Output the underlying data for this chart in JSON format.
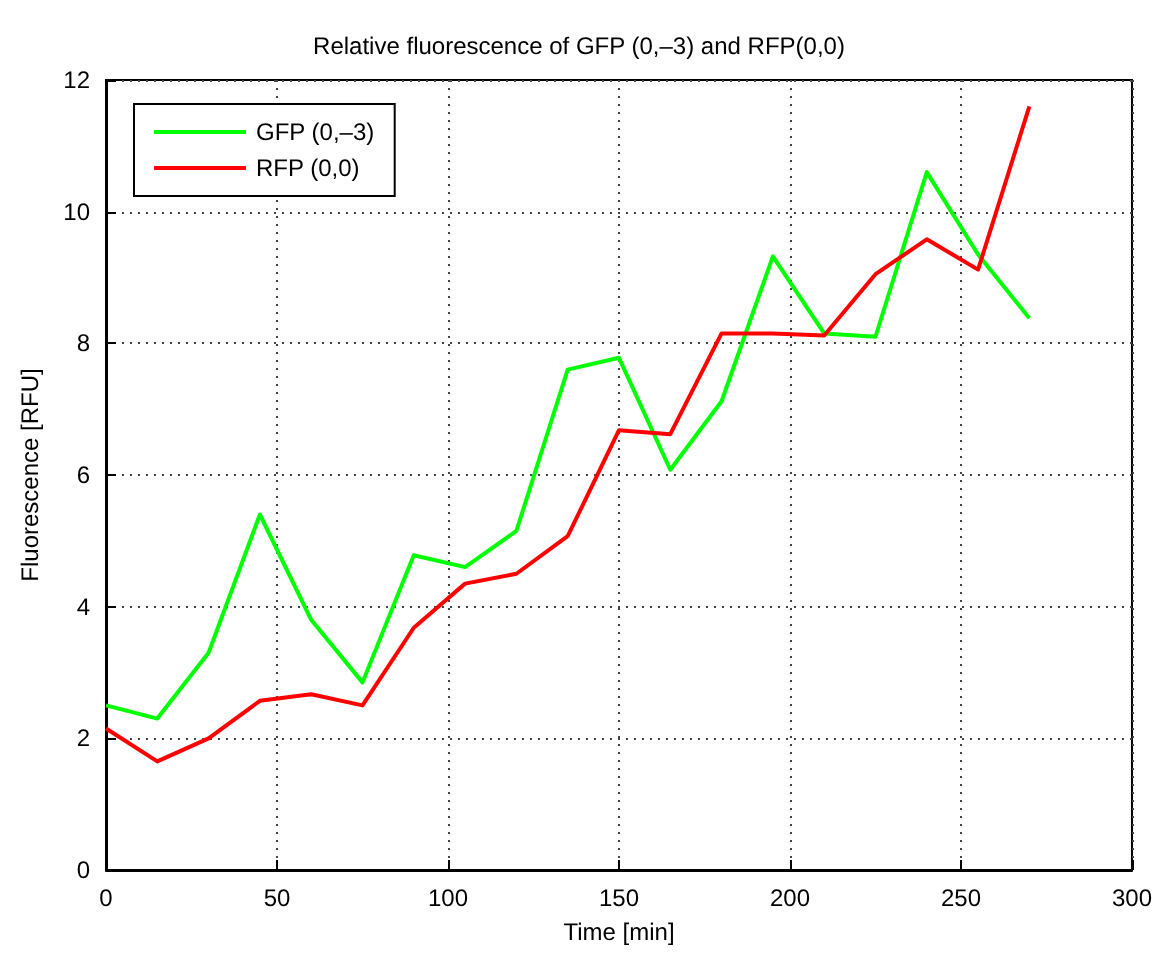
{
  "chart_data": {
    "type": "line",
    "title": "Relative fluorescence of GFP (0,–3) and RFP(0,0)",
    "xlabel": "Time [min]",
    "ylabel": "Fluorescence [RFU]",
    "x": [
      0,
      15,
      30,
      45,
      60,
      75,
      90,
      105,
      120,
      135,
      150,
      165,
      180,
      195,
      210,
      225,
      240,
      255,
      270
    ],
    "series": [
      {
        "name": "GFP (0,–3)",
        "color": "#00ff00",
        "values": [
          2.5,
          2.3,
          3.3,
          5.4,
          3.8,
          2.85,
          4.78,
          4.6,
          5.15,
          7.6,
          7.78,
          6.08,
          7.12,
          9.32,
          8.15,
          8.1,
          10.6,
          9.35,
          8.38
        ]
      },
      {
        "name": "RFP (0,0)",
        "color": "#ff0000",
        "values": [
          2.15,
          1.65,
          2.0,
          2.57,
          2.67,
          2.5,
          3.68,
          4.35,
          4.5,
          5.07,
          6.68,
          6.62,
          8.15,
          8.15,
          8.12,
          9.05,
          9.58,
          9.12,
          11.6
        ]
      }
    ],
    "xlim": [
      0,
      300
    ],
    "xticks": [
      0,
      50,
      100,
      150,
      200,
      250,
      300
    ],
    "ylim": [
      0,
      12
    ],
    "yticks": [
      0,
      2,
      4,
      6,
      8,
      10,
      12
    ],
    "grid": true,
    "legend": "top left",
    "marker": "none",
    "line_style": "solid"
  }
}
